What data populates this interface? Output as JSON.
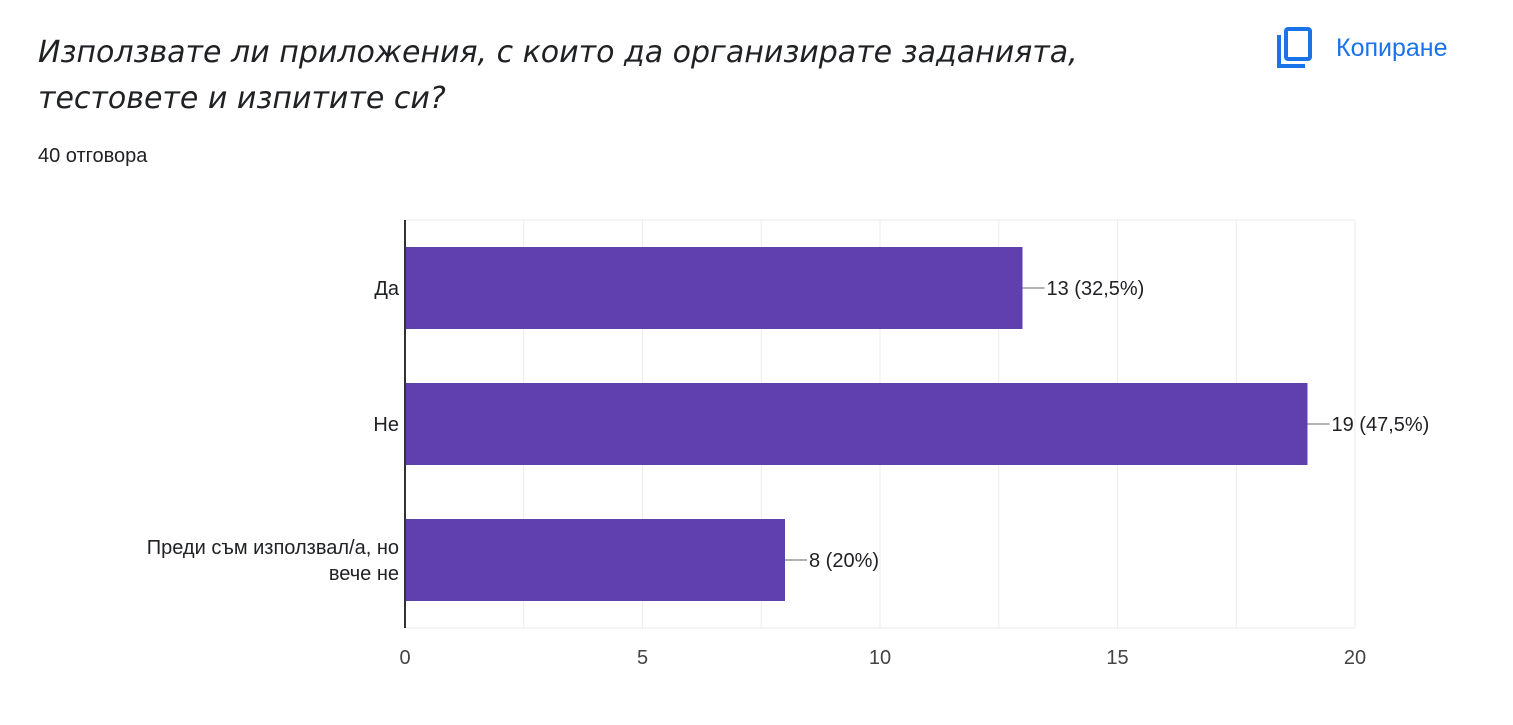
{
  "question": {
    "title": "Използвате ли приложения, с които да организирате заданията, тестовете и изпитите си?",
    "response_count": "40 отговора"
  },
  "toolbar": {
    "copy_label": "Копиране",
    "copy_icon": "copy-icon"
  },
  "colors": {
    "bar": "#6040ae",
    "accent": "#1a73e8",
    "grid": "#ebebeb",
    "axis": "#333333",
    "leader": "#999999"
  },
  "chart_data": {
    "type": "bar",
    "orientation": "horizontal",
    "categories": [
      [
        "Да"
      ],
      [
        "Не"
      ],
      [
        "Преди съм използвал/а, но",
        "вече не"
      ]
    ],
    "values": [
      13,
      19,
      8
    ],
    "data_labels": [
      "13 (32,5%)",
      "19 (47,5%)",
      "8 (20%)"
    ],
    "x_ticks": [
      0,
      5,
      10,
      15,
      20
    ],
    "xlim": [
      0,
      20
    ],
    "grid": true,
    "legend": "none"
  }
}
